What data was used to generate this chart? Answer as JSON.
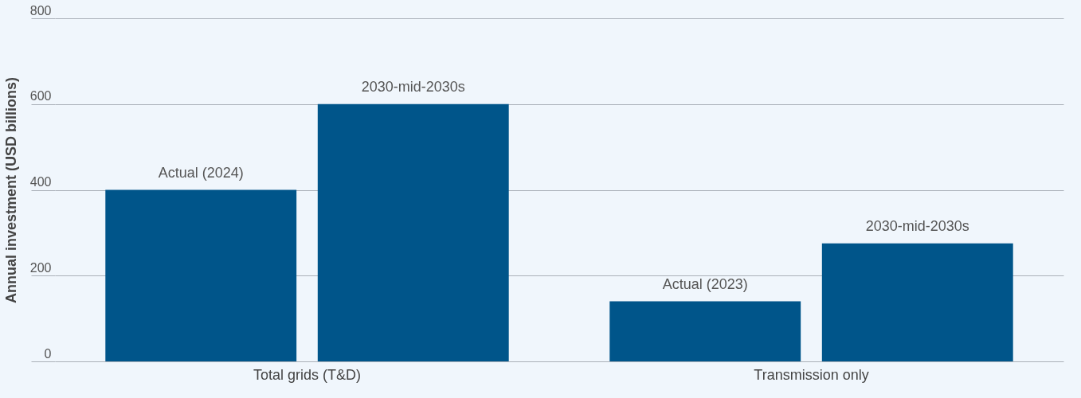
{
  "chart_data": {
    "type": "bar",
    "ylabel": "Annual investment (USD billions)",
    "categories": [
      "Total grids (T&D)",
      "Transmission only"
    ],
    "series": [
      {
        "name": "Actual (2024)",
        "color": "#00558a",
        "values": [
          400,
          null
        ]
      },
      {
        "name": "2030-mid-2030s",
        "color": "#00558a",
        "values": [
          600,
          null
        ]
      },
      {
        "name": "Actual (2023)",
        "color": "#00558a",
        "values": [
          null,
          140
        ]
      },
      {
        "name": "2030-mid-2030s",
        "color": "#00558a",
        "values": [
          null,
          275
        ]
      }
    ],
    "ylim": [
      0,
      800
    ],
    "yticks": [
      0,
      200,
      400,
      600,
      800
    ],
    "grid": "y",
    "legend": false
  }
}
